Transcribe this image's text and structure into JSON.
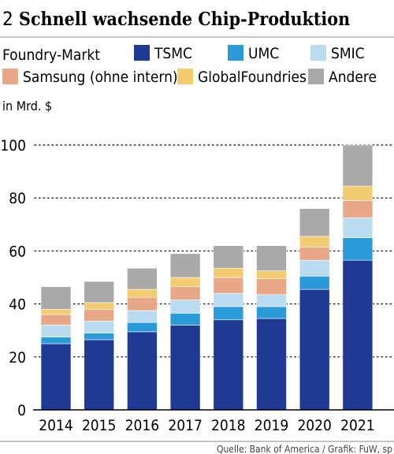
{
  "chart_data": {
    "type": "bar",
    "stacked": true,
    "figure_number": "2",
    "title": "Schnell wachsende Chip-Produktion",
    "legend_title": "Foundry-Markt",
    "legend_position": "top",
    "ylabel": "in Mrd. $",
    "xlabel": "",
    "ylim": [
      0,
      100
    ],
    "yticks": [
      0,
      20,
      40,
      60,
      80,
      100
    ],
    "grid": "horizontal dotted",
    "categories": [
      "2014",
      "2015",
      "2016",
      "2017",
      "2018",
      "2019",
      "2020",
      "2021"
    ],
    "series": [
      {
        "name": "TSMC",
        "color": "#1f3a93",
        "values": [
          25,
          26.5,
          29.5,
          32,
          34,
          34.5,
          45.5,
          56.5
        ]
      },
      {
        "name": "UMC",
        "color": "#2a9ad8",
        "values": [
          2.5,
          2.5,
          3.5,
          4.5,
          5,
          4.5,
          5,
          8.5
        ]
      },
      {
        "name": "SMIC",
        "color": "#b9dcf1",
        "values": [
          4.5,
          4.5,
          4.5,
          5,
          5,
          4.5,
          6,
          7.5
        ]
      },
      {
        "name": "Samsung (ohne intern)",
        "color": "#e8a888",
        "values": [
          4,
          4.5,
          5,
          5,
          6,
          6,
          5,
          6.5
        ]
      },
      {
        "name": "GlobalFoundries",
        "color": "#f2cc6e",
        "values": [
          2,
          2.5,
          3,
          3.5,
          3.5,
          3,
          4,
          5.5
        ]
      },
      {
        "name": "Andere",
        "color": "#a9a9a9",
        "values": [
          8.5,
          8,
          8,
          9,
          8.5,
          9.5,
          10.5,
          15.5
        ]
      }
    ],
    "source": "Quelle: Bank of America / Grafik: FuW, sp"
  }
}
